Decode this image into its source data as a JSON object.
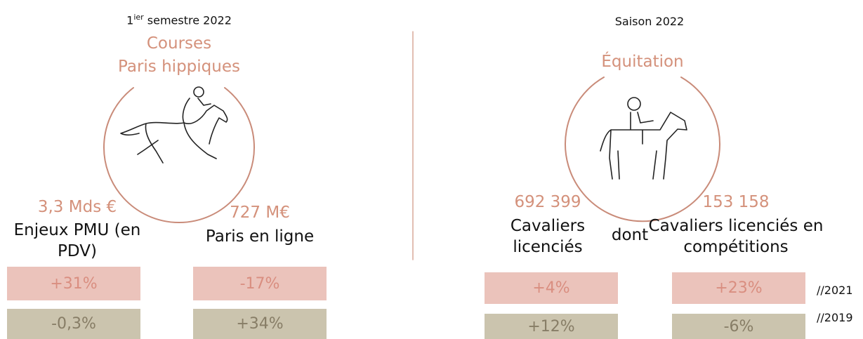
{
  "left": {
    "period": {
      "main": "1",
      "sup": "ier",
      "rest": "semestre 2022"
    },
    "title": [
      "Courses",
      "Paris hippiques"
    ],
    "metrics": [
      {
        "value": "3,3 Mds €",
        "label": "Enjeux PMU (en PDV)",
        "vs2021": "+31%",
        "vs2019": "-0,3%"
      },
      {
        "value": "727 M€",
        "label": "Paris en ligne",
        "vs2021": "-17%",
        "vs2019": "+34%"
      }
    ]
  },
  "right": {
    "period": "Saison 2022",
    "title": "Équitation",
    "metrics": [
      {
        "value": "692 399",
        "label": "Cavaliers licenciés",
        "vs2021": "+4%",
        "vs2019": "+12%"
      },
      {
        "value": "153 158",
        "label": "Cavaliers licenciés en compétitions",
        "vs2021": "+23%",
        "vs2019": "-6%"
      }
    ],
    "connector": "dont"
  },
  "legend": [
    "//2021",
    "//2019"
  ]
}
